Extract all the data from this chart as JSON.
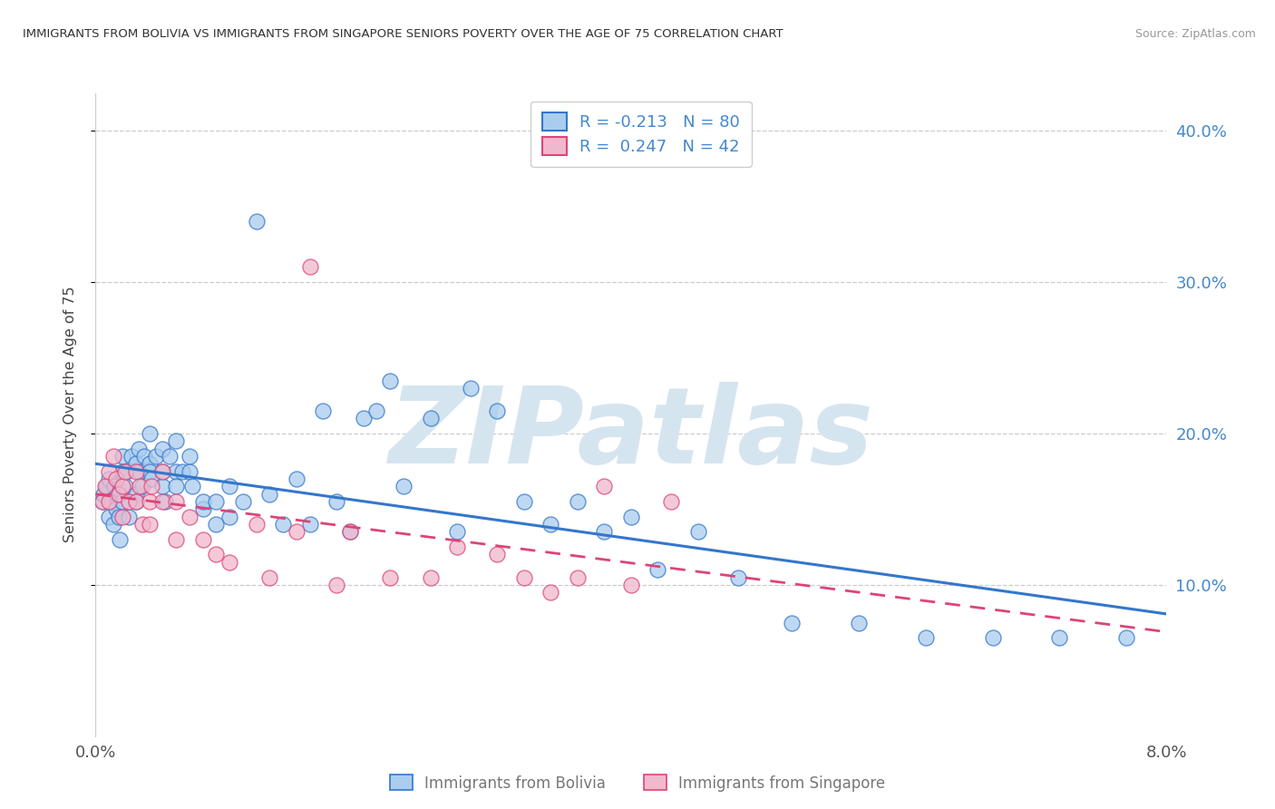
{
  "title": "IMMIGRANTS FROM BOLIVIA VS IMMIGRANTS FROM SINGAPORE SENIORS POVERTY OVER THE AGE OF 75 CORRELATION CHART",
  "source": "Source: ZipAtlas.com",
  "ylabel_left": "Seniors Poverty Over the Age of 75",
  "x_min": 0.0,
  "x_max": 0.08,
  "y_min": 0.0,
  "y_max": 0.425,
  "right_yticks": [
    0.1,
    0.2,
    0.3,
    0.4
  ],
  "right_yticklabels": [
    "10.0%",
    "20.0%",
    "30.0%",
    "40.0%"
  ],
  "bolivia_color": "#aaccee",
  "singapore_color": "#f0b8cc",
  "bolivia_R": -0.213,
  "bolivia_N": 80,
  "singapore_R": 0.247,
  "singapore_N": 42,
  "trend_bolivia_color": "#3377cc",
  "trend_singapore_color": "#dd4477",
  "watermark": "ZIPatlas",
  "watermark_color": "#d5e5f0",
  "legend_label_bolivia": "Immigrants from Bolivia",
  "legend_label_singapore": "Immigrants from Singapore",
  "bolivia_x": [
    0.0005,
    0.0006,
    0.0008,
    0.001,
    0.001,
    0.0012,
    0.0013,
    0.0014,
    0.0015,
    0.0016,
    0.0017,
    0.0018,
    0.002,
    0.002,
    0.002,
    0.0022,
    0.0023,
    0.0025,
    0.0027,
    0.003,
    0.003,
    0.003,
    0.0032,
    0.0033,
    0.0035,
    0.0036,
    0.004,
    0.004,
    0.004,
    0.0042,
    0.0045,
    0.005,
    0.005,
    0.005,
    0.0052,
    0.0055,
    0.006,
    0.006,
    0.006,
    0.0065,
    0.007,
    0.007,
    0.0072,
    0.008,
    0.008,
    0.009,
    0.009,
    0.01,
    0.01,
    0.011,
    0.012,
    0.013,
    0.014,
    0.015,
    0.016,
    0.017,
    0.018,
    0.019,
    0.02,
    0.021,
    0.022,
    0.023,
    0.025,
    0.027,
    0.028,
    0.03,
    0.032,
    0.034,
    0.036,
    0.038,
    0.04,
    0.042,
    0.045,
    0.048,
    0.052,
    0.057,
    0.062,
    0.067,
    0.072,
    0.077
  ],
  "bolivia_y": [
    0.155,
    0.16,
    0.165,
    0.145,
    0.17,
    0.155,
    0.14,
    0.165,
    0.15,
    0.16,
    0.145,
    0.13,
    0.155,
    0.175,
    0.185,
    0.165,
    0.175,
    0.145,
    0.185,
    0.16,
    0.155,
    0.18,
    0.19,
    0.175,
    0.165,
    0.185,
    0.2,
    0.18,
    0.175,
    0.17,
    0.185,
    0.175,
    0.165,
    0.19,
    0.155,
    0.185,
    0.175,
    0.165,
    0.195,
    0.175,
    0.175,
    0.185,
    0.165,
    0.15,
    0.155,
    0.155,
    0.14,
    0.165,
    0.145,
    0.155,
    0.34,
    0.16,
    0.14,
    0.17,
    0.14,
    0.215,
    0.155,
    0.135,
    0.21,
    0.215,
    0.235,
    0.165,
    0.21,
    0.135,
    0.23,
    0.215,
    0.155,
    0.14,
    0.155,
    0.135,
    0.145,
    0.11,
    0.135,
    0.105,
    0.075,
    0.075,
    0.065,
    0.065,
    0.065,
    0.065
  ],
  "singapore_x": [
    0.0005,
    0.0007,
    0.001,
    0.001,
    0.0013,
    0.0015,
    0.0017,
    0.002,
    0.002,
    0.0022,
    0.0025,
    0.003,
    0.003,
    0.0033,
    0.0035,
    0.004,
    0.004,
    0.0042,
    0.005,
    0.005,
    0.006,
    0.006,
    0.007,
    0.008,
    0.009,
    0.01,
    0.012,
    0.013,
    0.015,
    0.016,
    0.018,
    0.019,
    0.022,
    0.025,
    0.027,
    0.03,
    0.032,
    0.034,
    0.036,
    0.038,
    0.04,
    0.043
  ],
  "singapore_y": [
    0.155,
    0.165,
    0.175,
    0.155,
    0.185,
    0.17,
    0.16,
    0.165,
    0.145,
    0.175,
    0.155,
    0.175,
    0.155,
    0.165,
    0.14,
    0.155,
    0.14,
    0.165,
    0.155,
    0.175,
    0.155,
    0.13,
    0.145,
    0.13,
    0.12,
    0.115,
    0.14,
    0.105,
    0.135,
    0.31,
    0.1,
    0.135,
    0.105,
    0.105,
    0.125,
    0.12,
    0.105,
    0.095,
    0.105,
    0.165,
    0.1,
    0.155
  ]
}
